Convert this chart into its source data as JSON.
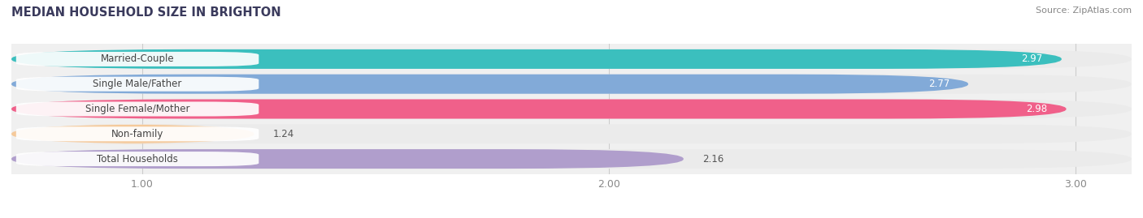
{
  "title": "MEDIAN HOUSEHOLD SIZE IN BRIGHTON",
  "source": "Source: ZipAtlas.com",
  "categories": [
    "Married-Couple",
    "Single Male/Father",
    "Single Female/Mother",
    "Non-family",
    "Total Households"
  ],
  "values": [
    2.97,
    2.77,
    2.98,
    1.24,
    2.16
  ],
  "bar_colors": [
    "#3bbfbe",
    "#82aad8",
    "#f0608a",
    "#f5c99a",
    "#b09ecc"
  ],
  "bar_bg_colors": [
    "#ebebeb",
    "#ebebeb",
    "#ebebeb",
    "#ebebeb",
    "#ebebeb"
  ],
  "xlim_min": 0.72,
  "xlim_max": 3.12,
  "data_min": 1.0,
  "xticks": [
    1.0,
    2.0,
    3.0
  ],
  "bar_height": 0.78,
  "background_color": "#ffffff",
  "plot_bg_color": "#f0f0f0",
  "label_fontsize": 8.5,
  "value_fontsize": 8.5,
  "title_fontsize": 10.5,
  "source_fontsize": 8
}
